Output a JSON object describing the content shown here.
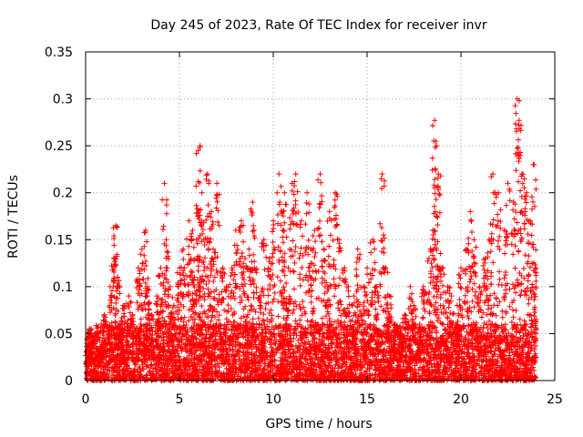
{
  "chart_data": {
    "type": "scatter",
    "title": "Day 245 of 2023, Rate Of TEC Index for receiver invr",
    "xlabel": "GPS time / hours",
    "ylabel": "ROTI / TECUs",
    "xlim": [
      0,
      25
    ],
    "ylim": [
      0,
      0.35
    ],
    "xticks": [
      0,
      5,
      10,
      15,
      20,
      25
    ],
    "xtick_labels": [
      "0",
      "5",
      "10",
      "15",
      "20",
      "25"
    ],
    "yticks": [
      0,
      0.05,
      0.1,
      0.15,
      0.2,
      0.25,
      0.3,
      0.35
    ],
    "ytick_labels": [
      "0",
      "0.05",
      "0.1",
      "0.15",
      "0.2",
      "0.25",
      "0.3",
      "0.35"
    ],
    "grid": true,
    "marker": "+",
    "color": "#ff0000",
    "series": [
      {
        "name": "ROTI",
        "x": [
          0.2,
          0.3,
          0.5,
          0.8,
          1.0,
          1.3,
          1.5,
          1.6,
          1.7,
          1.8,
          2.0,
          2.3,
          2.5,
          2.8,
          3.0,
          3.2,
          3.3,
          3.5,
          3.8,
          4.0,
          4.2,
          4.3,
          4.5,
          4.7,
          5.0,
          5.2,
          5.5,
          5.7,
          5.8,
          6.0,
          6.1,
          6.2,
          6.3,
          6.5,
          6.7,
          6.8,
          7.0,
          7.3,
          7.5,
          7.8,
          8.0,
          8.3,
          8.5,
          8.7,
          8.9,
          9.0,
          9.3,
          9.5,
          9.8,
          10.0,
          10.3,
          10.5,
          10.6,
          10.8,
          11.0,
          11.2,
          11.5,
          11.8,
          12.0,
          12.2,
          12.5,
          12.7,
          12.9,
          13.0,
          13.3,
          13.5,
          13.8,
          14.0,
          14.3,
          14.5,
          14.8,
          15.0,
          15.3,
          15.5,
          15.8,
          16.0,
          16.2,
          16.5,
          16.8,
          17.0,
          17.3,
          17.5,
          17.8,
          18.0,
          18.3,
          18.5,
          18.6,
          18.7,
          18.8,
          19.0,
          19.3,
          19.5,
          19.8,
          20.0,
          20.3,
          20.5,
          20.7,
          21.0,
          21.3,
          21.5,
          21.7,
          22.0,
          22.3,
          22.5,
          22.8,
          23.0,
          23.1,
          23.3,
          23.5,
          23.7,
          23.9,
          24.0
        ],
        "y": [
          0.04,
          0.055,
          0.05,
          0.03,
          0.07,
          0.1,
          0.13,
          0.165,
          0.11,
          0.06,
          0.08,
          0.09,
          0.07,
          0.12,
          0.14,
          0.16,
          0.1,
          0.07,
          0.09,
          0.12,
          0.21,
          0.15,
          0.1,
          0.08,
          0.12,
          0.14,
          0.17,
          0.16,
          0.11,
          0.245,
          0.25,
          0.2,
          0.15,
          0.22,
          0.18,
          0.14,
          0.21,
          0.12,
          0.1,
          0.12,
          0.16,
          0.17,
          0.13,
          0.14,
          0.19,
          0.12,
          0.09,
          0.15,
          0.13,
          0.17,
          0.22,
          0.18,
          0.2,
          0.12,
          0.21,
          0.22,
          0.17,
          0.2,
          0.14,
          0.16,
          0.22,
          0.14,
          0.1,
          0.18,
          0.2,
          0.15,
          0.12,
          0.1,
          0.09,
          0.14,
          0.1,
          0.12,
          0.15,
          0.1,
          0.22,
          0.12,
          0.09,
          0.06,
          0.05,
          0.07,
          0.1,
          0.08,
          0.06,
          0.1,
          0.13,
          0.16,
          0.277,
          0.25,
          0.22,
          0.12,
          0.1,
          0.09,
          0.08,
          0.12,
          0.14,
          0.18,
          0.15,
          0.1,
          0.13,
          0.15,
          0.22,
          0.2,
          0.16,
          0.21,
          0.19,
          0.3,
          0.277,
          0.22,
          0.2,
          0.17,
          0.23,
          0.12
        ]
      }
    ],
    "baseline_band": {
      "x_start": 0,
      "x_end": 24,
      "y_min": 0.0,
      "y_max_typical": 0.06
    }
  }
}
